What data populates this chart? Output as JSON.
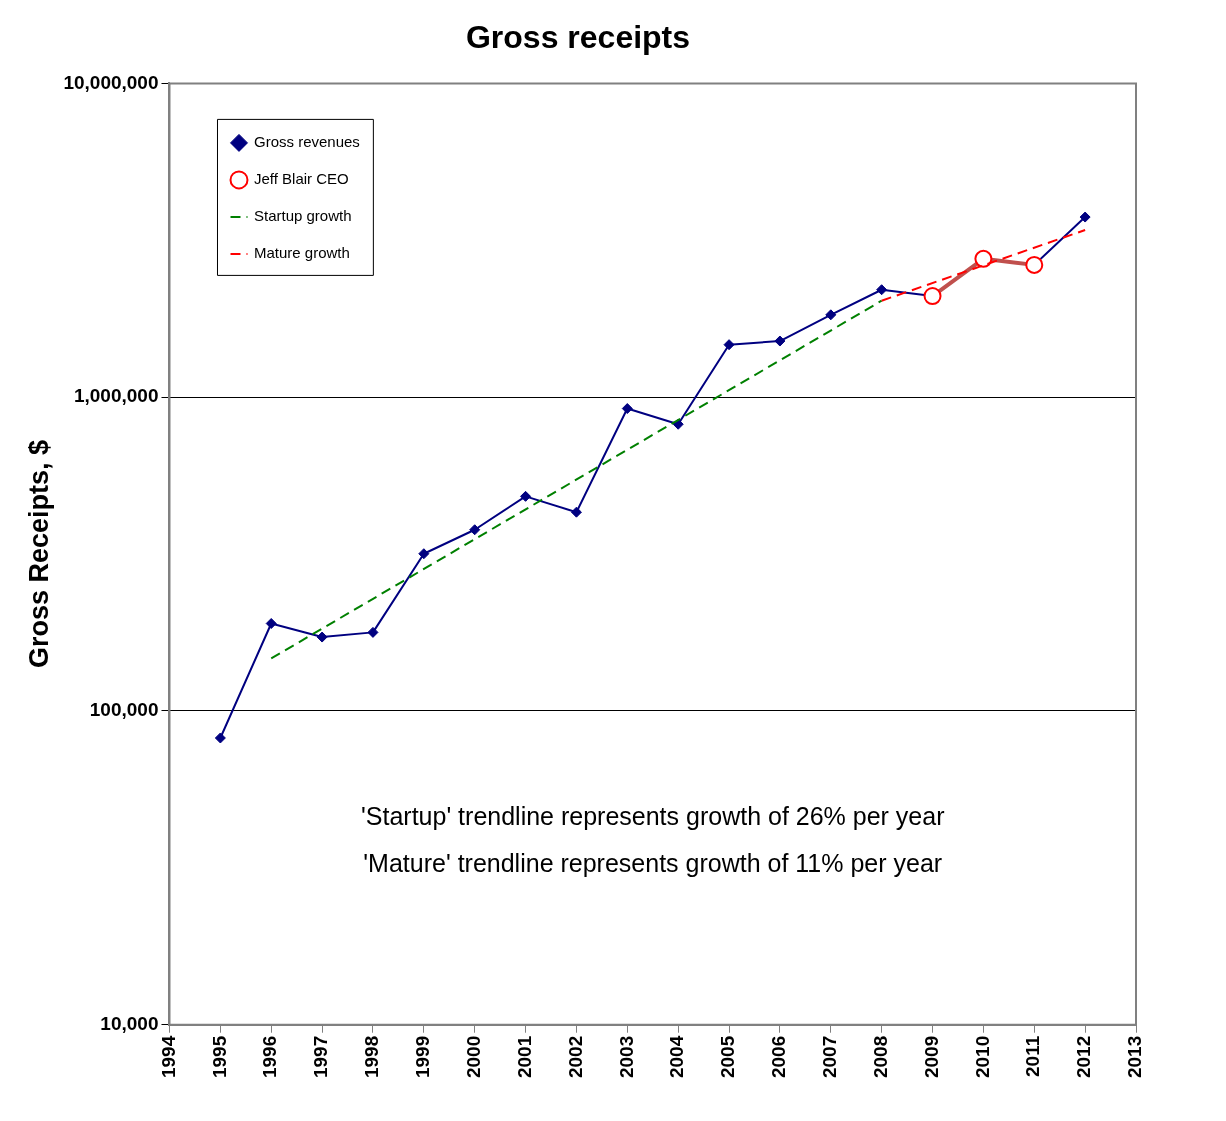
{
  "chart_data": {
    "type": "line",
    "title": "Gross receipts",
    "ylabel": "Gross Receipts, $",
    "x": [
      1995,
      1996,
      1997,
      1998,
      1999,
      2000,
      2001,
      2002,
      2003,
      2004,
      2005,
      2006,
      2007,
      2008,
      2009,
      2010,
      2011,
      2012
    ],
    "series": [
      {
        "name": "Gross revenues",
        "color": "#000080",
        "marker": "diamond",
        "line_style": "solid",
        "values": [
          82000,
          190000,
          172000,
          178000,
          317000,
          378000,
          483000,
          430000,
          920000,
          820000,
          1470000,
          1510000,
          1830000,
          2200000,
          2100000,
          null,
          2640000,
          3750000
        ]
      },
      {
        "name": "Jeff Blair CEO",
        "color": "#c0504d",
        "marker": "circle",
        "line_style": "solid",
        "x": [
          2009,
          2010,
          2011
        ],
        "values": [
          2100000,
          2760000,
          2640000
        ]
      },
      {
        "name": "Startup growth",
        "color": "#008000",
        "marker": "none",
        "line_style": "dashed",
        "x": [
          1996,
          2008
        ],
        "values": [
          147000,
          2030000
        ]
      },
      {
        "name": "Mature growth",
        "color": "#ff0000",
        "marker": "none",
        "line_style": "dashed",
        "x": [
          2008,
          2012
        ],
        "values": [
          2030000,
          3410000
        ]
      }
    ],
    "log": "y",
    "xlim": [
      1994,
      2013
    ],
    "xticks": [
      1994,
      1995,
      1996,
      1997,
      1998,
      1999,
      2000,
      2001,
      2002,
      2003,
      2004,
      2005,
      2006,
      2007,
      2008,
      2009,
      2010,
      2011,
      2012,
      2013
    ],
    "ylim": [
      10000,
      10000000
    ],
    "yticks": [
      {
        "value": 10000,
        "label": "10,000"
      },
      {
        "value": 100000,
        "label": "100,000"
      },
      {
        "value": 1000000,
        "label": "1,000,000"
      },
      {
        "value": 10000000,
        "label": "10,000,000"
      }
    ],
    "grid": "y",
    "legend": "top left",
    "annotations": [
      "'Startup' trendline represents growth of 26% per year",
      "'Mature' trendline represents growth of 11% per year"
    ]
  }
}
